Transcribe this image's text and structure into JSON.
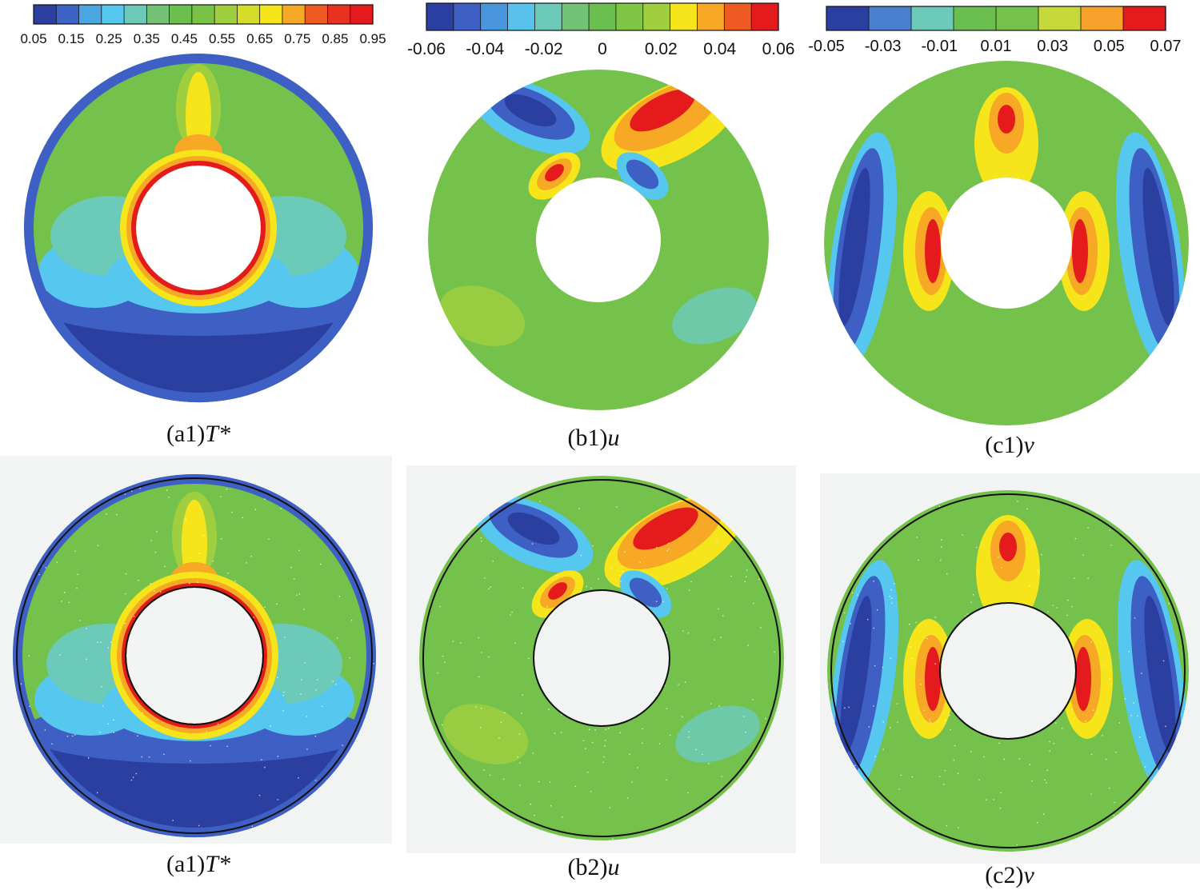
{
  "colorbars": [
    {
      "id": "a",
      "ticks": [
        "0.05",
        "0.15",
        "0.25",
        "0.35",
        "0.45",
        "0.55",
        "0.65",
        "0.75",
        "0.85",
        "0.95"
      ],
      "colors": [
        "#2b3fa0",
        "#3e63c6",
        "#4aa6e0",
        "#56c8ef",
        "#6ccab8",
        "#74c275",
        "#6bbf4f",
        "#78c346",
        "#9fcf3f",
        "#d4dd2a",
        "#f6e51a",
        "#f7a824",
        "#ee5a22",
        "#e8321f",
        "#e41a1c"
      ]
    },
    {
      "id": "b",
      "ticks": [
        "-0.06",
        "-0.04",
        "-0.02",
        "0",
        "0.02",
        "0.04",
        "0.06"
      ],
      "colors": [
        "#2b3fa0",
        "#3e5fc4",
        "#4a96dc",
        "#59c2ec",
        "#6ccab8",
        "#74c275",
        "#6bbf4f",
        "#7fc646",
        "#9fcf3f",
        "#f6e51a",
        "#f7a824",
        "#ee5a22",
        "#e41a1c"
      ]
    },
    {
      "id": "c",
      "ticks": [
        "-0.05",
        "-0.03",
        "-0.01",
        "0.01",
        "0.03",
        "0.05",
        "0.07"
      ],
      "colors": [
        "#2b3fa0",
        "#4a80cf",
        "#6ccab8",
        "#6bbf4f",
        "#74c24c",
        "#c5d93a",
        "#f5a12a",
        "#e41a1c"
      ]
    }
  ],
  "panels": [
    {
      "id": "a1-top",
      "prefix": "(a1)",
      "var": "T*",
      "field": "T",
      "experimental": false
    },
    {
      "id": "b1",
      "prefix": "(b1)",
      "var": "u",
      "field": "u",
      "experimental": false
    },
    {
      "id": "c1",
      "prefix": "(c1)",
      "var": "v",
      "field": "v",
      "experimental": false
    },
    {
      "id": "a1-bottom",
      "prefix": "(a1)",
      "var": "T*",
      "field": "T",
      "experimental": true
    },
    {
      "id": "b2",
      "prefix": "(b2)",
      "var": "u",
      "field": "u",
      "experimental": true
    },
    {
      "id": "c2",
      "prefix": "(c2)",
      "var": "v",
      "field": "v",
      "experimental": true
    }
  ],
  "palette": {
    "deep_blue": "#2b3fa0",
    "blue": "#3e5fc4",
    "light_blue": "#56c8ef",
    "teal": "#6ccab8",
    "green": "#74c24c",
    "light_green": "#9fcf3f",
    "yellow": "#f6e51a",
    "orange": "#f7a824",
    "red_orange": "#ee5a22",
    "red": "#e41a1c",
    "outline": "#111111",
    "exp_bg": "#f2f4f3"
  }
}
